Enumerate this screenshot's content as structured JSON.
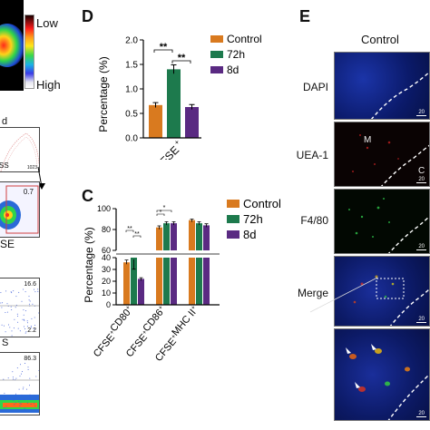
{
  "left": {
    "legend_low": "Low",
    "legend_high": "High",
    "label_d": "d",
    "label_ss": "SS",
    "label_1023": "1023",
    "gate_value": "0.7",
    "label_cfse": "SE",
    "p3_top": "16.6",
    "p3_bottom": "2.2",
    "label_s": "S",
    "p4_top": "86.3"
  },
  "panel_d": {
    "letter": "D",
    "ylabel": "Percentage (%)",
    "xlabel": "CFSE",
    "xlabel_sup": "+",
    "sig1": "**",
    "sig2": "**",
    "legend": [
      "Control",
      "72h",
      "8d"
    ]
  },
  "panel_c": {
    "letter": "C",
    "ylabel": "Percentage (%)",
    "sig_a1": "**",
    "sig_a2": "**",
    "sig_b1": "*",
    "sig_b2": "*",
    "legend": [
      "Control",
      "72h",
      "8d"
    ],
    "cat_labels": [
      {
        "main": "CFSE",
        "sup1": "+",
        "mid": "CD80",
        "sup2": "+"
      },
      {
        "main": "CFSE",
        "sup1": "+",
        "mid": "CD86",
        "sup2": "+"
      },
      {
        "main": "CFSE",
        "sup1": "+",
        "mid": "MHC II",
        "sup2": "+"
      }
    ]
  },
  "panel_e": {
    "letter": "E",
    "title": "Control",
    "rows": [
      "DAPI",
      "UEA-1",
      "F4/80",
      "Merge"
    ],
    "label_m": "M",
    "label_c": "C",
    "scale": "20"
  },
  "chart_data": [
    {
      "panel": "D",
      "type": "bar",
      "categories": [
        "CFSE+"
      ],
      "series": [
        {
          "name": "Control",
          "values": [
            0.67
          ],
          "errors": [
            0.05
          ]
        },
        {
          "name": "72h",
          "values": [
            1.4
          ],
          "errors": [
            0.09
          ]
        },
        {
          "name": "8d",
          "values": [
            0.63
          ],
          "errors": [
            0.05
          ]
        }
      ],
      "ylim": [
        0,
        2.0
      ],
      "yticks": [
        0.0,
        0.5,
        1.0,
        1.5,
        2.0
      ],
      "ytick_labels": [
        "0.0",
        "0.5",
        "1.0",
        "1.5",
        "2.0"
      ],
      "ylabel": "Percentage (%)",
      "colors": [
        "#d97a1f",
        "#1d7a4d",
        "#5a2a82"
      ],
      "legend_position": "right"
    },
    {
      "panel": "C",
      "type": "bar",
      "categories": [
        "CFSE+CD80+",
        "CFSE+CD86+",
        "CFSE+MHC II+"
      ],
      "series": [
        {
          "name": "Control",
          "values": [
            36,
            82,
            89
          ],
          "errors": [
            2,
            1.5,
            1
          ]
        },
        {
          "name": "72h",
          "values": [
            40,
            86,
            86
          ],
          "errors": [
            2,
            1.5,
            1.5
          ]
        },
        {
          "name": "8d",
          "values": [
            22,
            86,
            84
          ],
          "errors": [
            1,
            1.5,
            1.5
          ]
        }
      ],
      "ylim": [
        0,
        100
      ],
      "axis_break": [
        40,
        60
      ],
      "yticks": [
        0,
        10,
        20,
        30,
        40,
        60,
        80,
        100
      ],
      "ytick_labels": [
        "0",
        "10",
        "20",
        "30",
        "40",
        "60",
        "80",
        "100"
      ],
      "ylabel": "Percentage (%)",
      "colors": [
        "#d97a1f",
        "#1d7a4d",
        "#5a2a82"
      ],
      "legend_position": "right"
    }
  ]
}
